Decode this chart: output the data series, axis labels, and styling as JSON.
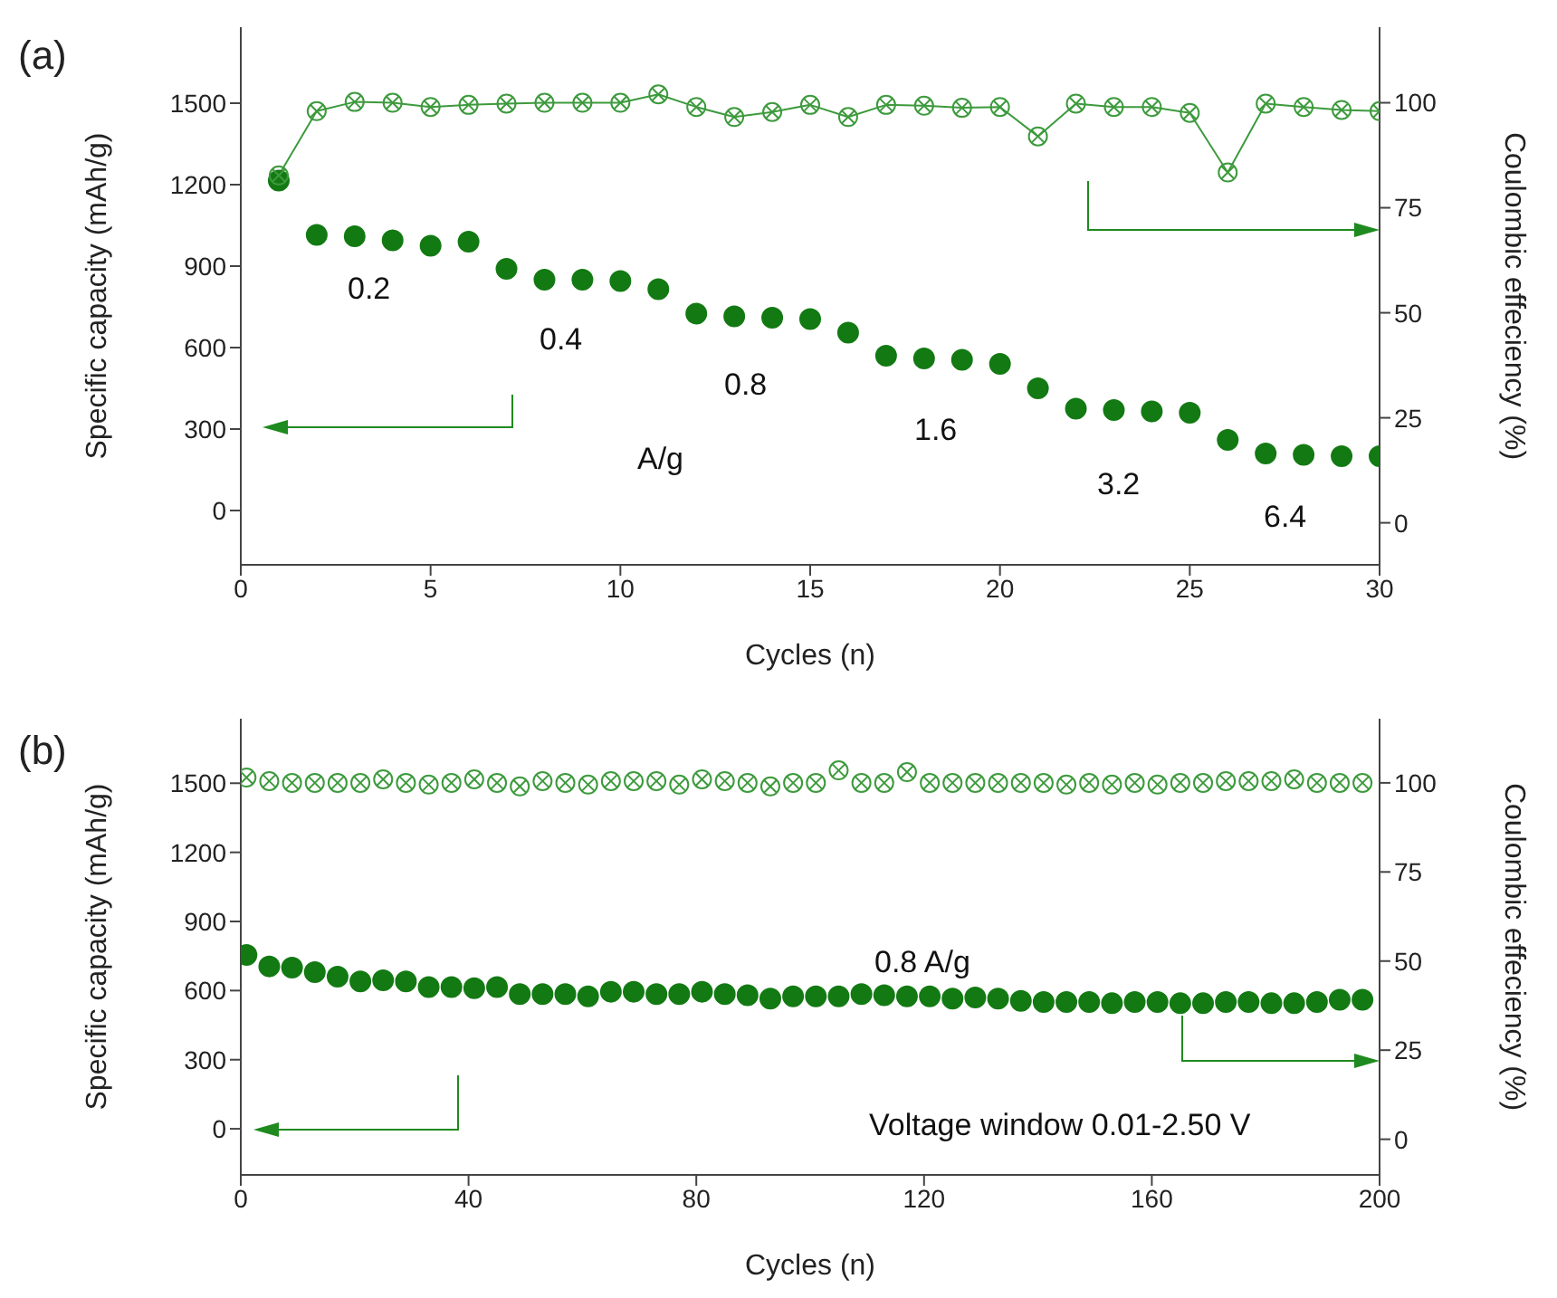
{
  "chart_data": [
    {
      "type": "scatter",
      "title": "(a)",
      "xlabel": "Cycles (n)",
      "ylabel": "Specific capacity (mAh/g)",
      "y2label": "Coulombic effeciency (%)",
      "x": [
        1,
        2,
        3,
        4,
        5,
        6,
        7,
        8,
        9,
        10,
        11,
        12,
        13,
        14,
        15,
        16,
        17,
        18,
        19,
        20,
        21,
        22,
        23,
        24,
        25,
        26,
        27,
        28,
        29,
        30
      ],
      "series": [
        {
          "color": "#137a13",
          "marker": "circle",
          "values": [
            1215,
            1015,
            1010,
            995,
            975,
            990,
            890,
            850,
            850,
            845,
            815,
            725,
            715,
            710,
            705,
            655,
            570,
            560,
            555,
            540,
            450,
            375,
            370,
            365,
            360,
            260,
            210,
            205,
            200,
            200
          ]
        },
        {
          "type": "line",
          "axis": "y2",
          "color": "#3d9a3d",
          "marker": "circle",
          "line_style": "solid",
          "values": [
            82.7,
            98,
            100.2,
            100,
            99,
            99.5,
            99.8,
            100,
            100,
            100,
            102,
            99,
            96.6,
            97.8,
            99.5,
            96.6,
            99.5,
            99.3,
            98.8,
            99,
            92,
            99.8,
            99,
            99,
            97.6,
            83.4,
            99.8,
            99,
            98.3,
            98
          ]
        }
      ],
      "xlim": [
        0,
        30
      ],
      "xticks": [
        0,
        5,
        10,
        15,
        20,
        25,
        30
      ],
      "ylim": [
        -200,
        1780
      ],
      "yticks": [
        0,
        300,
        600,
        900,
        1200,
        1500
      ],
      "y2lim": [
        -10,
        118
      ],
      "y2ticks": [
        0,
        25,
        50,
        75,
        100
      ],
      "grid": false,
      "legend": false,
      "annotations": [
        "0.2",
        "0.4",
        "0.8",
        "1.6",
        "3.2",
        "6.4",
        "A/g"
      ]
    },
    {
      "type": "scatter",
      "title": "(b)",
      "xlabel": "Cycles (n)",
      "ylabel": "Specific capacity (mAh/g)",
      "y2label": "Coulombic effeciency (%)",
      "x": [
        1,
        5,
        9,
        13,
        17,
        21,
        25,
        29,
        33,
        37,
        41,
        45,
        49,
        53,
        57,
        61,
        65,
        69,
        73,
        77,
        81,
        85,
        89,
        93,
        97,
        101,
        105,
        109,
        113,
        117,
        121,
        125,
        129,
        133,
        137,
        141,
        145,
        149,
        153,
        157,
        161,
        165,
        169,
        173,
        177,
        181,
        185,
        189,
        193,
        197
      ],
      "series": [
        {
          "color": "#137a13",
          "marker": "circle",
          "values": [
            755,
            705,
            700,
            680,
            660,
            640,
            645,
            640,
            615,
            615,
            610,
            615,
            585,
            585,
            585,
            575,
            595,
            595,
            585,
            585,
            595,
            585,
            580,
            565,
            575,
            575,
            575,
            585,
            580,
            575,
            575,
            565,
            570,
            565,
            555,
            550,
            550,
            550,
            545,
            550,
            550,
            545,
            545,
            550,
            550,
            545,
            545,
            550,
            560,
            560
          ]
        },
        {
          "axis": "y2",
          "color": "#3d9a3d",
          "marker": "circle",
          "values": [
            101.5,
            100.5,
            100,
            100,
            100,
            100,
            101,
            100,
            99.5,
            100,
            101,
            100,
            99,
            100.5,
            100,
            99.5,
            100.5,
            100.5,
            100.5,
            99.5,
            101,
            100.5,
            100,
            99,
            100,
            100,
            103.5,
            100,
            100,
            103,
            100,
            100,
            100,
            100,
            100,
            100,
            99.5,
            100,
            99.5,
            100,
            99.5,
            100,
            100,
            100.5,
            100.5,
            100.5,
            101,
            100,
            100,
            100
          ]
        }
      ],
      "xlim": [
        0,
        200
      ],
      "xticks": [
        0,
        40,
        80,
        120,
        160,
        200
      ],
      "ylim": [
        -200,
        1780
      ],
      "yticks": [
        0,
        300,
        600,
        900,
        1200,
        1500
      ],
      "y2lim": [
        -10,
        118
      ],
      "y2ticks": [
        0,
        25,
        50,
        75,
        100
      ],
      "grid": false,
      "legend": false,
      "annotations": [
        "0.8 A/g",
        "Voltage window 0.01-2.50 V"
      ]
    }
  ]
}
